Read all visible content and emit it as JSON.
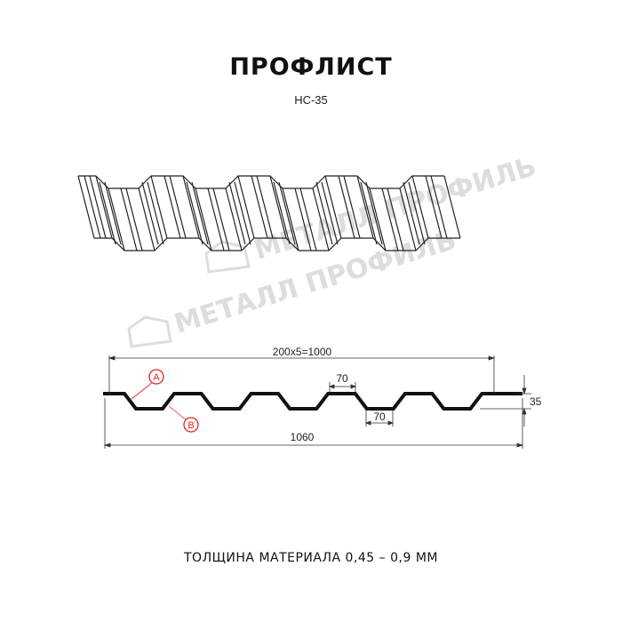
{
  "title": "ПРОФЛИСТ",
  "subtitle": "НС-35",
  "watermark": "МЕТАЛЛ ПРОФИЛЬ",
  "dimensions": {
    "cover_width": "200x5=1000",
    "full_width": "1060",
    "top_flat": "70",
    "bottom_flat": "70",
    "height": "35"
  },
  "callouts": {
    "a": "A",
    "b": "B"
  },
  "footer": "ТОЛЩИНА МАТЕРИАЛА 0,45 – 0,9 ММ",
  "colors": {
    "line": "#111111",
    "callout": "#e02020",
    "watermark": "#dddddd"
  }
}
